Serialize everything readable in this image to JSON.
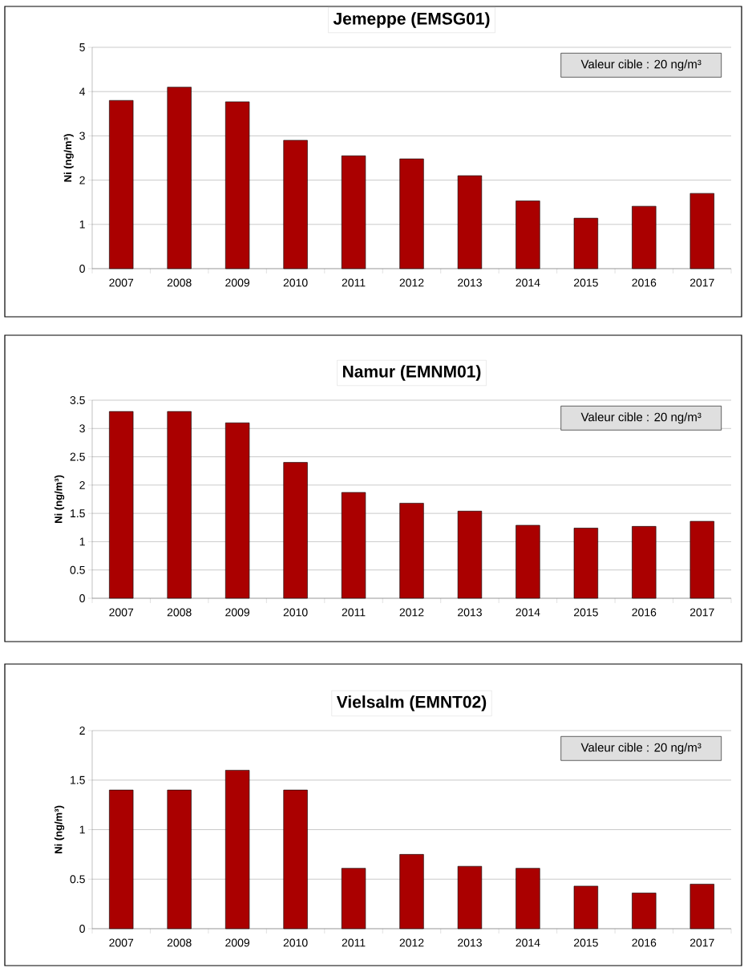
{
  "chart_data": [
    {
      "type": "bar",
      "title": "Jemeppe (EMSG01)",
      "ylabel": "Ni (ng/m³)",
      "annotations": [
        "Valeur cible : 20 ng/m³"
      ],
      "categories": [
        "2007",
        "2008",
        "2009",
        "2010",
        "2011",
        "2012",
        "2013",
        "2014",
        "2015",
        "2016",
        "2017"
      ],
      "values": [
        3.8,
        4.1,
        3.77,
        2.9,
        2.55,
        2.48,
        2.1,
        1.53,
        1.14,
        1.41,
        1.7
      ],
      "color": "#aa0000",
      "ylim": [
        0,
        5
      ],
      "yticks": [
        0,
        1,
        2,
        3,
        4,
        5
      ],
      "grid": "y"
    },
    {
      "type": "bar",
      "title": "Namur (EMNM01)",
      "ylabel": "Ni (ng/m³)",
      "annotations": [
        "Valeur cible : 20 ng/m³"
      ],
      "categories": [
        "2007",
        "2008",
        "2009",
        "2010",
        "2011",
        "2012",
        "2013",
        "2014",
        "2015",
        "2016",
        "2017"
      ],
      "values": [
        3.3,
        3.3,
        3.1,
        2.4,
        1.87,
        1.68,
        1.54,
        1.29,
        1.24,
        1.27,
        1.36
      ],
      "color": "#aa0000",
      "ylim": [
        0,
        3.5
      ],
      "yticks": [
        0,
        0.5,
        1,
        1.5,
        2,
        2.5,
        3,
        3.5
      ],
      "grid": "y"
    },
    {
      "type": "bar",
      "title": "Vielsalm (EMNT02)",
      "ylabel": "Ni (ng/m³)",
      "annotations": [
        "Valeur cible : 20 ng/m³"
      ],
      "categories": [
        "2007",
        "2008",
        "2009",
        "2010",
        "2011",
        "2012",
        "2013",
        "2014",
        "2015",
        "2016",
        "2017"
      ],
      "values": [
        1.4,
        1.4,
        1.6,
        1.4,
        0.61,
        0.75,
        0.63,
        0.61,
        0.43,
        0.36,
        0.45
      ],
      "color": "#aa0000",
      "ylim": [
        0,
        2
      ],
      "yticks": [
        0,
        0.5,
        1,
        1.5,
        2
      ],
      "grid": "y"
    }
  ]
}
